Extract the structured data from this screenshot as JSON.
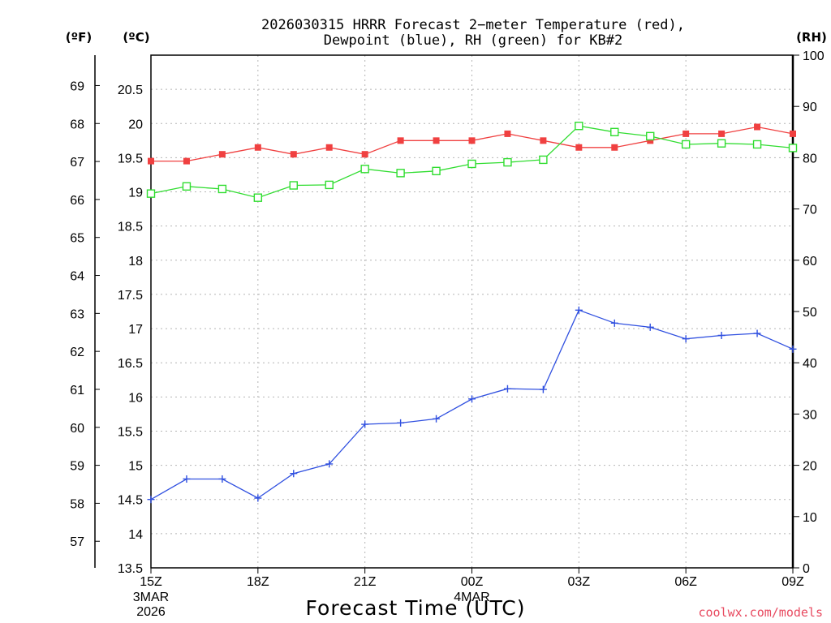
{
  "chart_data": {
    "type": "line",
    "title": "2026030315 HRRR Forecast 2−meter Temperature (red),",
    "subtitle": "Dewpoint (blue), RH (green) for KB#2",
    "xlabel": "Forecast Time (UTC)",
    "credit": "coolwx.com/models",
    "units": {
      "fahrenheit": "(ºF)",
      "celsius": "(ºC)",
      "rh": "(RH)"
    },
    "x": [
      0,
      1,
      2,
      3,
      4,
      5,
      6,
      7,
      8,
      9,
      10,
      11,
      12,
      13,
      14,
      15,
      16,
      17,
      18
    ],
    "x_ticks": [
      {
        "x": 0,
        "label": "15Z",
        "date": "3MAR",
        "year": "2026"
      },
      {
        "x": 3,
        "label": "18Z"
      },
      {
        "x": 6,
        "label": "21Z"
      },
      {
        "x": 9,
        "label": "00Z",
        "date": "4MAR"
      },
      {
        "x": 12,
        "label": "03Z"
      },
      {
        "x": 15,
        "label": "06Z"
      },
      {
        "x": 18,
        "label": "09Z"
      }
    ],
    "y_celsius": {
      "range": [
        13.5,
        21.0
      ],
      "ticks": [
        "13.5",
        "14",
        "14.5",
        "15",
        "15.5",
        "16",
        "16.5",
        "17",
        "17.5",
        "18",
        "18.5",
        "19",
        "19.5",
        "20",
        "20.5"
      ]
    },
    "y_fahrenheit": {
      "ticks": [
        "57",
        "58",
        "59",
        "60",
        "61",
        "62",
        "63",
        "64",
        "65",
        "66",
        "67",
        "68",
        "69"
      ]
    },
    "y_rh": {
      "range": [
        0,
        100
      ],
      "ticks": [
        "0",
        "10",
        "20",
        "30",
        "40",
        "50",
        "60",
        "70",
        "80",
        "90",
        "100"
      ]
    },
    "series": [
      {
        "name": "Temperature",
        "axis": "celsius",
        "color": "#f04040",
        "marker": "filled-square",
        "values": [
          19.45,
          19.45,
          19.55,
          19.65,
          19.55,
          19.65,
          19.55,
          19.75,
          19.75,
          19.75,
          19.85,
          19.75,
          19.65,
          19.65,
          19.75,
          19.85,
          19.85,
          19.95,
          19.85
        ]
      },
      {
        "name": "Dewpoint",
        "axis": "celsius",
        "color": "#3050e0",
        "marker": "plus",
        "values": [
          14.5,
          14.8,
          14.8,
          14.52,
          14.88,
          15.02,
          15.6,
          15.62,
          15.68,
          15.97,
          16.12,
          16.11,
          17.27,
          17.08,
          17.02,
          16.85,
          16.9,
          16.93,
          16.7
        ]
      },
      {
        "name": "RH",
        "axis": "rh",
        "color": "#30dd30",
        "marker": "open-square",
        "values": [
          73,
          74.4,
          73.9,
          72.2,
          74.6,
          74.7,
          77.8,
          77,
          77.4,
          78.8,
          79.1,
          79.6,
          86.2,
          85,
          84.2,
          82.6,
          82.8,
          82.6,
          81.9
        ]
      }
    ]
  }
}
